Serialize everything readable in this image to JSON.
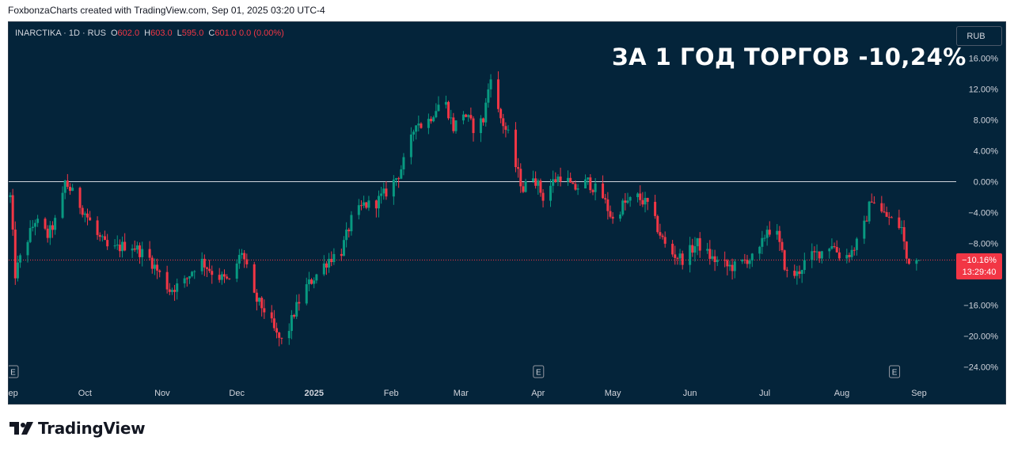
{
  "header": {
    "text": "FoxbonzaCharts created with TradingView.com, Sep 01, 2025 03:20 UTC-4"
  },
  "legend": {
    "symbol": "INARCTIKA · 1D · RUS",
    "open_label": "O",
    "open": "602.0",
    "high_label": "H",
    "high": "603.0",
    "low_label": "L",
    "low": "595.0",
    "close_label": "C",
    "close": "601.0",
    "change": "0.0 (0.00%)"
  },
  "big_title": "ЗА 1 ГОД ТОРГОВ -10,24%",
  "currency_button": "RUB",
  "price_label": {
    "value": "−10.16%",
    "countdown": "13:29:40"
  },
  "footer": {
    "brand": "TradingView"
  },
  "colors": {
    "background": "#04243a",
    "up": "#089981",
    "down": "#f23645",
    "zero_line": "#d1d4dc",
    "axis_text": "#d1d4dc"
  },
  "chart_data": {
    "type": "candlestick",
    "y_scale": "percent",
    "ylim": [
      -24,
      16
    ],
    "y_ticks": [
      "16.00%",
      "12.00%",
      "8.00%",
      "4.00%",
      "0.00%",
      "−4.00%",
      "−8.00%",
      "−12.00%",
      "−16.00%",
      "−20.00%",
      "−24.00%"
    ],
    "y_tick_values": [
      16,
      12,
      8,
      4,
      0,
      -4,
      -8,
      -12,
      -16,
      -20,
      -24
    ],
    "x_ticks": [
      "Sep",
      "Oct",
      "Nov",
      "Dec",
      "2025",
      "Feb",
      "Mar",
      "Apr",
      "May",
      "Jun",
      "Jul",
      "Aug",
      "Sep"
    ],
    "x_tick_days": [
      0,
      30,
      61,
      91,
      122,
      153,
      181,
      212,
      242,
      273,
      303,
      334,
      365
    ],
    "x_range_days": [
      0,
      365
    ],
    "earnings_markers": {
      "label": "E",
      "days": [
        0,
        212,
        355
      ]
    },
    "last_value_pct": -10.16,
    "anchors": [
      [
        0,
        -2
      ],
      [
        2,
        -12
      ],
      [
        5,
        -9
      ],
      [
        10,
        -5
      ],
      [
        15,
        -7
      ],
      [
        20,
        -4
      ],
      [
        22,
        0
      ],
      [
        26,
        -2
      ],
      [
        30,
        -4
      ],
      [
        35,
        -7
      ],
      [
        40,
        -9
      ],
      [
        48,
        -8
      ],
      [
        56,
        -10
      ],
      [
        60,
        -12
      ],
      [
        64,
        -14
      ],
      [
        70,
        -13
      ],
      [
        76,
        -10
      ],
      [
        82,
        -12
      ],
      [
        88,
        -13
      ],
      [
        93,
        -9
      ],
      [
        98,
        -15
      ],
      [
        103,
        -17
      ],
      [
        107,
        -20
      ],
      [
        110,
        -21
      ],
      [
        114,
        -17
      ],
      [
        118,
        -14
      ],
      [
        123,
        -12
      ],
      [
        128,
        -10
      ],
      [
        133,
        -9
      ],
      [
        137,
        -5
      ],
      [
        142,
        -3
      ],
      [
        146,
        -3
      ],
      [
        152,
        -1
      ],
      [
        156,
        1
      ],
      [
        160,
        4
      ],
      [
        163,
        8
      ],
      [
        166,
        7
      ],
      [
        170,
        9
      ],
      [
        174,
        11
      ],
      [
        178,
        7
      ],
      [
        182,
        9
      ],
      [
        186,
        7
      ],
      [
        190,
        8
      ],
      [
        193,
        14
      ],
      [
        196,
        9
      ],
      [
        200,
        6
      ],
      [
        203,
        2
      ],
      [
        206,
        -1
      ],
      [
        210,
        1
      ],
      [
        214,
        -2
      ],
      [
        218,
        0
      ],
      [
        222,
        1
      ],
      [
        226,
        -1
      ],
      [
        232,
        0
      ],
      [
        238,
        -2
      ],
      [
        242,
        -5
      ],
      [
        246,
        -3
      ],
      [
        252,
        -2
      ],
      [
        256,
        -3
      ],
      [
        260,
        -6
      ],
      [
        264,
        -9
      ],
      [
        270,
        -10
      ],
      [
        276,
        -8
      ],
      [
        282,
        -10
      ],
      [
        288,
        -11
      ],
      [
        292,
        -11
      ],
      [
        296,
        -10
      ],
      [
        300,
        -10
      ],
      [
        304,
        -6
      ],
      [
        308,
        -7
      ],
      [
        312,
        -12
      ],
      [
        316,
        -12
      ],
      [
        320,
        -10
      ],
      [
        326,
        -9
      ],
      [
        330,
        -8
      ],
      [
        334,
        -10
      ],
      [
        338,
        -9
      ],
      [
        342,
        -7
      ],
      [
        346,
        -2
      ],
      [
        350,
        -4
      ],
      [
        354,
        -5
      ],
      [
        358,
        -6
      ],
      [
        360,
        -10
      ],
      [
        365,
        -10.16
      ]
    ]
  }
}
